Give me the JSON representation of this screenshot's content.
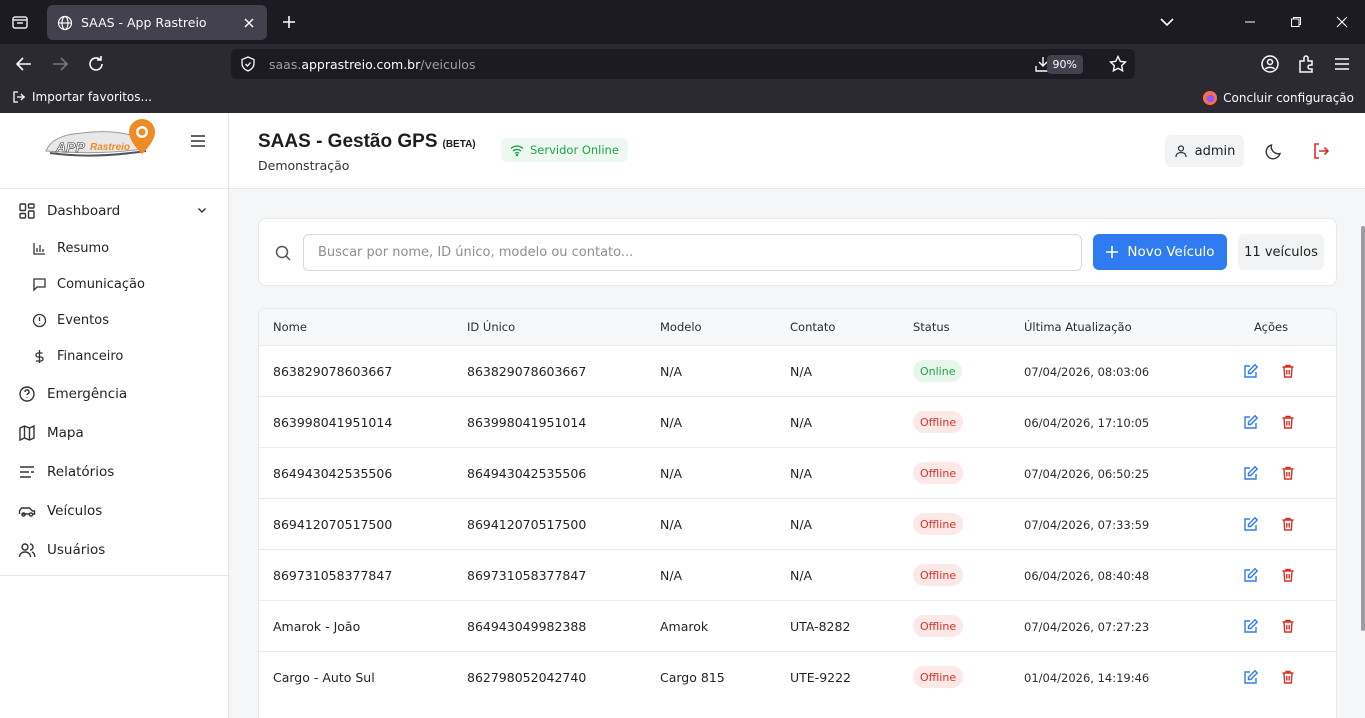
{
  "browser": {
    "tab_title": "SAAS - App Rastreio",
    "url_domain_prefix": "saas.",
    "url_domain": "apprastreio.com.br",
    "url_path": "/veiculos",
    "zoom": "90%",
    "bookmark_import": "Importar favoritos...",
    "finish_setup": "Concluir configuração"
  },
  "sidebar": {
    "logo_text": "APP Rastreio",
    "items": [
      {
        "label": "Dashboard",
        "icon": "dashboard-icon"
      },
      {
        "label": "Resumo",
        "icon": "chart-icon"
      },
      {
        "label": "Comunicação",
        "icon": "message-icon"
      },
      {
        "label": "Eventos",
        "icon": "alert-icon"
      },
      {
        "label": "Financeiro",
        "icon": "dollar-icon"
      },
      {
        "label": "Emergência",
        "icon": "help-icon"
      },
      {
        "label": "Mapa",
        "icon": "map-icon"
      },
      {
        "label": "Relatórios",
        "icon": "list-icon"
      },
      {
        "label": "Veículos",
        "icon": "car-icon"
      },
      {
        "label": "Usuários",
        "icon": "users-icon"
      }
    ]
  },
  "header": {
    "title": "SAAS - Gestão GPS",
    "beta": "(BETA)",
    "subtitle": "Demonstração",
    "server_status": "Servidor Online",
    "user": "admin"
  },
  "search": {
    "placeholder": "Buscar por nome, ID único, modelo ou contato...",
    "new_button": "Novo Veículo",
    "count": "11 veículos"
  },
  "table": {
    "columns": [
      "Nome",
      "ID Único",
      "Modelo",
      "Contato",
      "Status",
      "Última Atualização",
      "Ações"
    ],
    "rows": [
      {
        "nome": "863829078603667",
        "id": "863829078603667",
        "modelo": "N/A",
        "contato": "N/A",
        "status": "Online",
        "updated": "07/04/2026, 08:03:06"
      },
      {
        "nome": "863998041951014",
        "id": "863998041951014",
        "modelo": "N/A",
        "contato": "N/A",
        "status": "Offline",
        "updated": "06/04/2026, 17:10:05"
      },
      {
        "nome": "864943042535506",
        "id": "864943042535506",
        "modelo": "N/A",
        "contato": "N/A",
        "status": "Offline",
        "updated": "07/04/2026, 06:50:25"
      },
      {
        "nome": "869412070517500",
        "id": "869412070517500",
        "modelo": "N/A",
        "contato": "N/A",
        "status": "Offline",
        "updated": "07/04/2026, 07:33:59"
      },
      {
        "nome": "869731058377847",
        "id": "869731058377847",
        "modelo": "N/A",
        "contato": "N/A",
        "status": "Offline",
        "updated": "06/04/2026, 08:40:48"
      },
      {
        "nome": "Amarok - João",
        "id": "864943049982388",
        "modelo": "Amarok",
        "contato": "UTA-8282",
        "status": "Offline",
        "updated": "07/04/2026, 07:27:23"
      },
      {
        "nome": "Cargo - Auto Sul",
        "id": "862798052042740",
        "modelo": "Cargo 815",
        "contato": "UTE-9222",
        "status": "Offline",
        "updated": "01/04/2026, 14:19:46"
      }
    ]
  },
  "colors": {
    "primary": "#2f7bf2",
    "online": "#24a148",
    "offline": "#d93025"
  }
}
